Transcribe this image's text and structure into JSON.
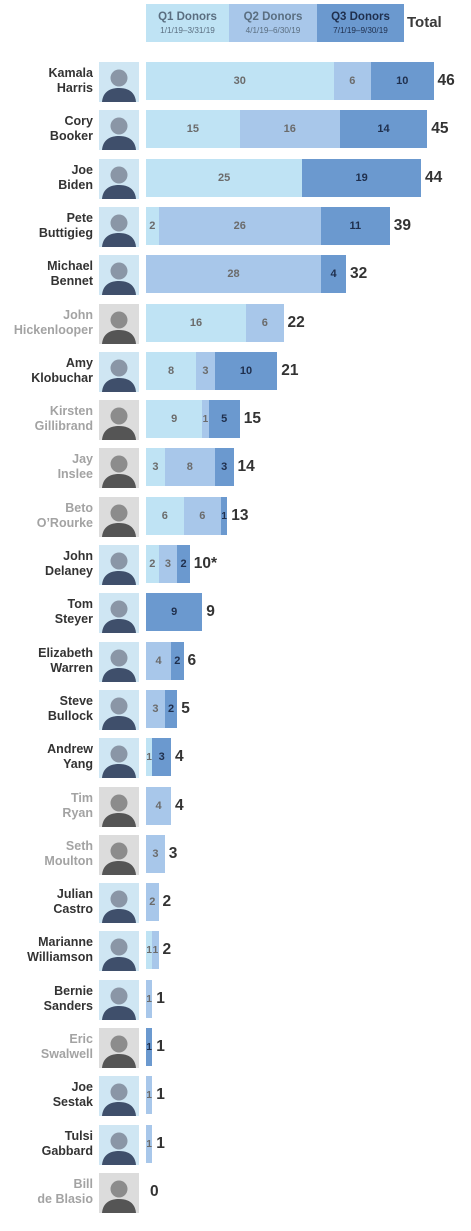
{
  "legend": {
    "q1": {
      "title": "Q1 Donors",
      "range": "1/1/19–3/31/19"
    },
    "q2": {
      "title": "Q2 Donors",
      "range": "4/1/19–6/30/19"
    },
    "q3": {
      "title": "Q3 Donors",
      "range": "7/1/19–9/30/19"
    },
    "total": "Total"
  },
  "colors": {
    "q1": "#bfe3f4",
    "q2": "#a8c7ea",
    "q3": "#6b99cf",
    "name_active": "#333333",
    "name_inactive": "#a3a3a3",
    "legend_q1_text": "#5a6e80",
    "legend_q2_text": "#5a6e80",
    "legend_q3_text": "#1f2f4d"
  },
  "chart_data": {
    "type": "bar",
    "orientation": "horizontal",
    "stacked": true,
    "series": [
      {
        "name": "Q1 Donors",
        "values": [
          30,
          15,
          25,
          2,
          0,
          16,
          8,
          9,
          3,
          6,
          2,
          0,
          0,
          0,
          1,
          0,
          0,
          0,
          1,
          0,
          0,
          0,
          0,
          0
        ]
      },
      {
        "name": "Q2 Donors",
        "values": [
          6,
          16,
          0,
          26,
          28,
          6,
          3,
          1,
          8,
          6,
          3,
          0,
          4,
          3,
          0,
          4,
          3,
          2,
          1,
          1,
          0,
          1,
          1,
          0
        ]
      },
      {
        "name": "Q3 Donors",
        "values": [
          10,
          14,
          19,
          11,
          4,
          0,
          10,
          5,
          3,
          1,
          2,
          9,
          2,
          2,
          3,
          0,
          0,
          0,
          0,
          0,
          1,
          0,
          0,
          0
        ]
      }
    ],
    "candidates": [
      {
        "first": "Kamala",
        "last": "Harris",
        "total": "46",
        "active": true,
        "segments": [
          {
            "q": "q1",
            "value": 30,
            "label": "30"
          },
          {
            "q": "q2",
            "value": 6,
            "label": "6"
          },
          {
            "q": "q3",
            "value": 10,
            "label": "10"
          }
        ]
      },
      {
        "first": "Cory",
        "last": "Booker",
        "total": "45",
        "active": true,
        "segments": [
          {
            "q": "q1",
            "value": 15,
            "label": "15"
          },
          {
            "q": "q2",
            "value": 16,
            "label": "16"
          },
          {
            "q": "q3",
            "value": 14,
            "label": "14"
          }
        ]
      },
      {
        "first": "Joe",
        "last": "Biden",
        "total": "44",
        "active": true,
        "segments": [
          {
            "q": "q1",
            "value": 25,
            "label": "25"
          },
          {
            "q": "q3",
            "value": 19,
            "label": "19"
          }
        ]
      },
      {
        "first": "Pete",
        "last": "Buttigieg",
        "total": "39",
        "active": true,
        "segments": [
          {
            "q": "q1",
            "value": 2,
            "label": "2"
          },
          {
            "q": "q2",
            "value": 26,
            "label": "26"
          },
          {
            "q": "q3",
            "value": 11,
            "label": "11"
          }
        ]
      },
      {
        "first": "Michael",
        "last": "Bennet",
        "total": "32",
        "active": true,
        "segments": [
          {
            "q": "q2",
            "value": 28,
            "label": "28"
          },
          {
            "q": "q3",
            "value": 4,
            "label": "4"
          }
        ]
      },
      {
        "first": "John",
        "last": "Hickenlooper",
        "total": "22",
        "active": false,
        "segments": [
          {
            "q": "q1",
            "value": 16,
            "label": "16"
          },
          {
            "q": "q2",
            "value": 6,
            "label": "6"
          }
        ]
      },
      {
        "first": "Amy",
        "last": "Klobuchar",
        "total": "21",
        "active": true,
        "segments": [
          {
            "q": "q1",
            "value": 8,
            "label": "8"
          },
          {
            "q": "q2",
            "value": 3,
            "label": "3"
          },
          {
            "q": "q3",
            "value": 10,
            "label": "10"
          }
        ]
      },
      {
        "first": "Kirsten",
        "last": "Gillibrand",
        "total": "15",
        "active": false,
        "segments": [
          {
            "q": "q1",
            "value": 9,
            "label": "9"
          },
          {
            "q": "q2",
            "value": 1,
            "label": "1"
          },
          {
            "q": "q3",
            "value": 5,
            "label": "5"
          }
        ]
      },
      {
        "first": "Jay",
        "last": "Inslee",
        "total": "14",
        "active": false,
        "segments": [
          {
            "q": "q1",
            "value": 3,
            "label": "3"
          },
          {
            "q": "q2",
            "value": 8,
            "label": "8"
          },
          {
            "q": "q3",
            "value": 3,
            "label": "3"
          }
        ]
      },
      {
        "first": "Beto",
        "last": "O’Rourke",
        "total": "13",
        "active": false,
        "segments": [
          {
            "q": "q1",
            "value": 6,
            "label": "6"
          },
          {
            "q": "q2",
            "value": 6,
            "label": "6"
          },
          {
            "q": "q3",
            "value": 1,
            "label": "1"
          }
        ]
      },
      {
        "first": "John",
        "last": "Delaney",
        "total": "10*",
        "active": true,
        "segments": [
          {
            "q": "q1",
            "value": 2,
            "label": "2"
          },
          {
            "q": "q2",
            "value": 3,
            "label": "3"
          },
          {
            "q": "q3",
            "value": 2,
            "label": "2"
          }
        ]
      },
      {
        "first": "Tom",
        "last": "Steyer",
        "total": "9",
        "active": true,
        "segments": [
          {
            "q": "q3",
            "value": 9,
            "label": "9"
          }
        ]
      },
      {
        "first": "Elizabeth",
        "last": "Warren",
        "total": "6",
        "active": true,
        "segments": [
          {
            "q": "q2",
            "value": 4,
            "label": "4"
          },
          {
            "q": "q3",
            "value": 2,
            "label": "2"
          }
        ]
      },
      {
        "first": "Steve",
        "last": "Bullock",
        "total": "5",
        "active": true,
        "segments": [
          {
            "q": "q2",
            "value": 3,
            "label": "3"
          },
          {
            "q": "q3",
            "value": 2,
            "label": "2"
          }
        ]
      },
      {
        "first": "Andrew",
        "last": "Yang",
        "total": "4",
        "active": true,
        "segments": [
          {
            "q": "q1",
            "value": 1,
            "label": "1"
          },
          {
            "q": "q3",
            "value": 3,
            "label": "3"
          }
        ]
      },
      {
        "first": "Tim",
        "last": "Ryan",
        "total": "4",
        "active": false,
        "segments": [
          {
            "q": "q2",
            "value": 4,
            "label": "4"
          }
        ]
      },
      {
        "first": "Seth",
        "last": "Moulton",
        "total": "3",
        "active": false,
        "segments": [
          {
            "q": "q2",
            "value": 3,
            "label": "3"
          }
        ]
      },
      {
        "first": "Julian",
        "last": "Castro",
        "total": "2",
        "active": true,
        "segments": [
          {
            "q": "q2",
            "value": 2,
            "label": "2"
          }
        ]
      },
      {
        "first": "Marianne",
        "last": "Williamson",
        "total": "2",
        "active": true,
        "segments": [
          {
            "q": "q1",
            "value": 1,
            "label": "1"
          },
          {
            "q": "q2",
            "value": 1,
            "label": "1"
          }
        ]
      },
      {
        "first": "Bernie",
        "last": "Sanders",
        "total": "1",
        "active": true,
        "segments": [
          {
            "q": "q2",
            "value": 1,
            "label": "1"
          }
        ]
      },
      {
        "first": "Eric",
        "last": "Swalwell",
        "total": "1",
        "active": false,
        "segments": [
          {
            "q": "q3",
            "value": 1,
            "label": "1"
          }
        ]
      },
      {
        "first": "Joe",
        "last": "Sestak",
        "total": "1",
        "active": true,
        "segments": [
          {
            "q": "q2",
            "value": 1,
            "label": "1"
          }
        ]
      },
      {
        "first": "Tulsi",
        "last": "Gabbard",
        "total": "1",
        "active": true,
        "segments": [
          {
            "q": "q2",
            "value": 1,
            "label": "1"
          }
        ]
      },
      {
        "first": "Bill",
        "last": "de Blasio",
        "total": "0",
        "active": false,
        "segments": []
      }
    ]
  }
}
